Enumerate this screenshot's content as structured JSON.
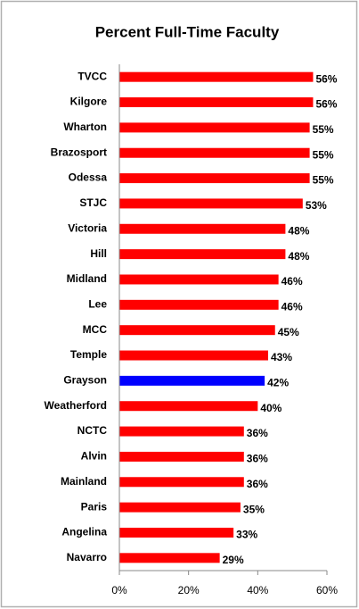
{
  "chart_data": {
    "type": "bar",
    "orientation": "horizontal",
    "title": "Percent Full-Time Faculty",
    "categories": [
      "TVCC",
      "Kilgore",
      "Wharton",
      "Brazosport",
      "Odessa",
      "STJC",
      "Victoria",
      "Hill",
      "Midland",
      "Lee",
      "MCC",
      "Temple",
      "Grayson",
      "Weatherford",
      "NCTC",
      "Alvin",
      "Mainland",
      "Paris",
      "Angelina",
      "Navarro"
    ],
    "values": [
      56,
      56,
      55,
      55,
      55,
      53,
      48,
      48,
      46,
      46,
      45,
      43,
      42,
      40,
      36,
      36,
      36,
      35,
      33,
      29
    ],
    "value_labels": [
      "56%",
      "56%",
      "55%",
      "55%",
      "55%",
      "53%",
      "48%",
      "48%",
      "46%",
      "46%",
      "45%",
      "43%",
      "42%",
      "40%",
      "36%",
      "36%",
      "36%",
      "35%",
      "33%",
      "29%"
    ],
    "colors": [
      "#ff0000",
      "#ff0000",
      "#ff0000",
      "#ff0000",
      "#ff0000",
      "#ff0000",
      "#ff0000",
      "#ff0000",
      "#ff0000",
      "#ff0000",
      "#ff0000",
      "#ff0000",
      "#0000ff",
      "#ff0000",
      "#ff0000",
      "#ff0000",
      "#ff0000",
      "#ff0000",
      "#ff0000",
      "#ff0000"
    ],
    "xlim": [
      0,
      60
    ],
    "xticks": [
      {
        "value": 0,
        "label": "0%"
      },
      {
        "value": 20,
        "label": "20%"
      },
      {
        "value": 40,
        "label": "40%"
      },
      {
        "value": 60,
        "label": "60%"
      }
    ],
    "grid": false
  }
}
